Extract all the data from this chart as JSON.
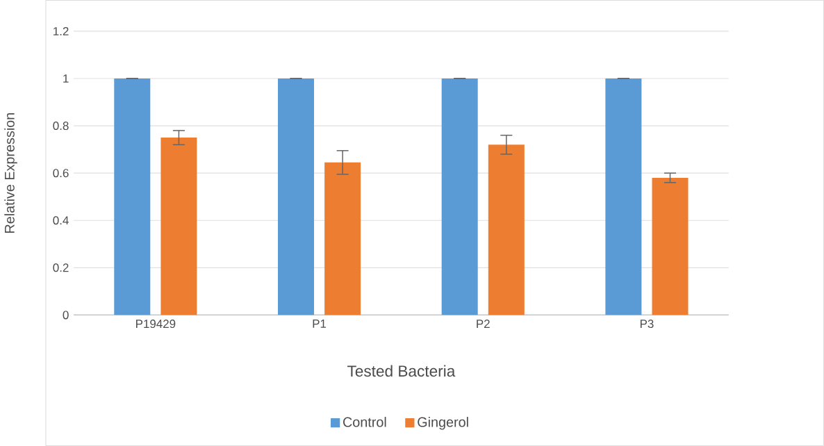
{
  "chart_data": {
    "type": "bar",
    "xlabel": "Tested Bacteria",
    "ylabel": "Relative Expression",
    "categories": [
      "P19429",
      "P1",
      "P2",
      "P3"
    ],
    "series": [
      {
        "name": "Control",
        "color": "#5b9bd5",
        "values": [
          1,
          1,
          1,
          1
        ],
        "errors": [
          0,
          0,
          0,
          0
        ]
      },
      {
        "name": "Gingerol",
        "color": "#ed7d31",
        "values": [
          0.75,
          0.645,
          0.72,
          0.58
        ],
        "errors": [
          0.03,
          0.05,
          0.04,
          0.02
        ]
      }
    ],
    "ylim": [
      0,
      1.2
    ],
    "yticks": [
      0,
      0.2,
      0.4,
      0.6,
      0.8,
      1,
      1.2
    ],
    "grid": "y",
    "legend": "bottom"
  }
}
